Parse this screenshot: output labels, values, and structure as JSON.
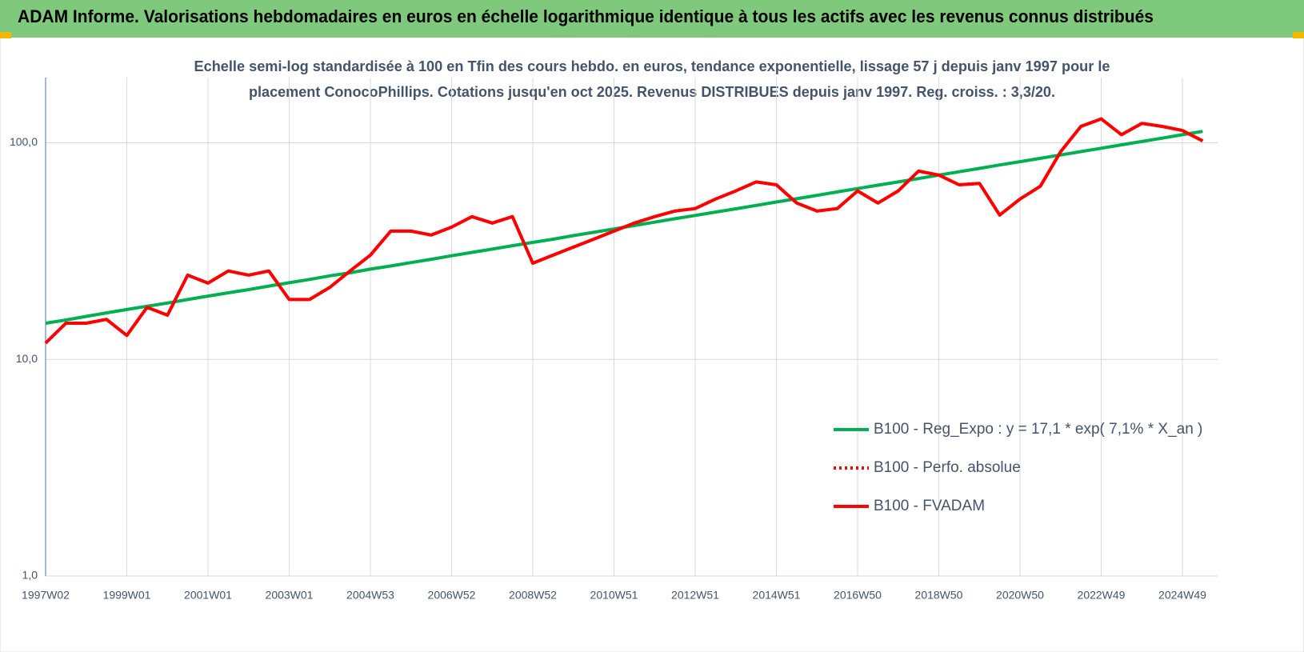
{
  "header": {
    "title": "ADAM Informe. Valorisations hebdomadaires en euros en échelle logarithmique identique à tous les actifs avec les revenus connus distribués"
  },
  "chart_data": {
    "type": "line",
    "title_lines": [
      "Echelle semi-log standardisée à 100 en Tfin des cours hebdo. en euros, tendance exponentielle, lissage 57 j depuis janv 1997 pour le",
      "placement ConocoPhillips. Cotations jusqu'en oct 2025. Revenus DISTRIBUES depuis janv 1997.  Reg. croiss. : 3,3/20."
    ],
    "categories": [
      "1997W02",
      null,
      null,
      null,
      "1999W01",
      null,
      null,
      null,
      "2001W01",
      null,
      null,
      null,
      "2003W01",
      null,
      null,
      null,
      "2004W53",
      null,
      null,
      null,
      "2006W52",
      null,
      null,
      null,
      "2008W52",
      null,
      null,
      null,
      "2010W51",
      null,
      null,
      null,
      "2012W51",
      null,
      null,
      null,
      "2014W51",
      null,
      null,
      null,
      "2016W50",
      null,
      null,
      null,
      "2018W50",
      null,
      null,
      null,
      "2020W50",
      null,
      null,
      null,
      "2022W49",
      null,
      null,
      null,
      "2024W49",
      null
    ],
    "log_scale": true,
    "ylim": [
      1,
      200
    ],
    "yticks": [
      {
        "value": 1,
        "label": "1,0"
      },
      {
        "value": 10,
        "label": "10,0"
      },
      {
        "value": 100,
        "label": "100,0"
      }
    ],
    "grid": true,
    "legend_position": "right",
    "series": [
      {
        "name": "B100 - Reg_Expo : y = 17,1 * exp( 7,1% *  X_an )",
        "color": "#00b050",
        "style": "solid",
        "values": [
          14.7,
          15.2,
          15.8,
          16.4,
          17.0,
          17.6,
          18.2,
          18.9,
          19.6,
          20.3,
          21.0,
          21.8,
          22.6,
          23.4,
          24.3,
          25.1,
          26.1,
          27.0,
          28.0,
          29.0,
          30.1,
          31.2,
          32.3,
          33.5,
          34.7,
          35.9,
          37.3,
          38.6,
          40.0,
          41.5,
          43.0,
          44.6,
          46.2,
          47.9,
          49.6,
          51.4,
          53.3,
          55.2,
          57.2,
          59.3,
          61.5,
          63.7,
          66.0,
          68.4,
          70.9,
          73.5,
          76.2,
          79.0,
          81.8,
          84.8,
          87.9,
          91.1,
          94.4,
          97.9,
          101.4,
          105.1,
          109.0,
          112.9
        ]
      },
      {
        "name": "B100 - Perfo. absolue",
        "color": "#ff0000",
        "style": "dotted",
        "values": [
          11.9,
          14.7,
          14.7,
          15.3,
          12.9,
          17.4,
          16.0,
          24.5,
          22.5,
          25.6,
          24.5,
          25.6,
          18.9,
          18.9,
          21.5,
          25.6,
          30.3,
          39.1,
          39.1,
          37.5,
          40.8,
          45.6,
          42.6,
          45.6,
          27.8,
          30.3,
          33.0,
          35.9,
          39.1,
          42.6,
          45.6,
          48.4,
          49.7,
          55.0,
          60,
          66,
          64,
          52.7,
          48.4,
          49.7,
          60,
          52.7,
          60,
          74,
          71,
          64,
          65,
          46.4,
          55,
          63,
          91,
          119,
          129,
          109,
          123,
          119,
          114,
          102
        ]
      },
      {
        "name": "B100 - FVADAM",
        "color": "#ff0000",
        "style": "solid",
        "values": [
          11.9,
          14.7,
          14.7,
          15.3,
          12.9,
          17.4,
          16.0,
          24.5,
          22.5,
          25.6,
          24.5,
          25.6,
          18.9,
          18.9,
          21.5,
          25.6,
          30.3,
          39.1,
          39.1,
          37.5,
          40.8,
          45.6,
          42.6,
          45.6,
          27.8,
          30.3,
          33.0,
          35.9,
          39.1,
          42.6,
          45.6,
          48.4,
          49.7,
          55.0,
          60,
          66,
          64,
          52.7,
          48.4,
          49.7,
          60,
          52.7,
          60,
          74,
          71,
          64,
          65,
          46.4,
          55,
          63,
          91,
          119,
          129,
          109,
          123,
          119,
          114,
          102
        ]
      }
    ]
  }
}
